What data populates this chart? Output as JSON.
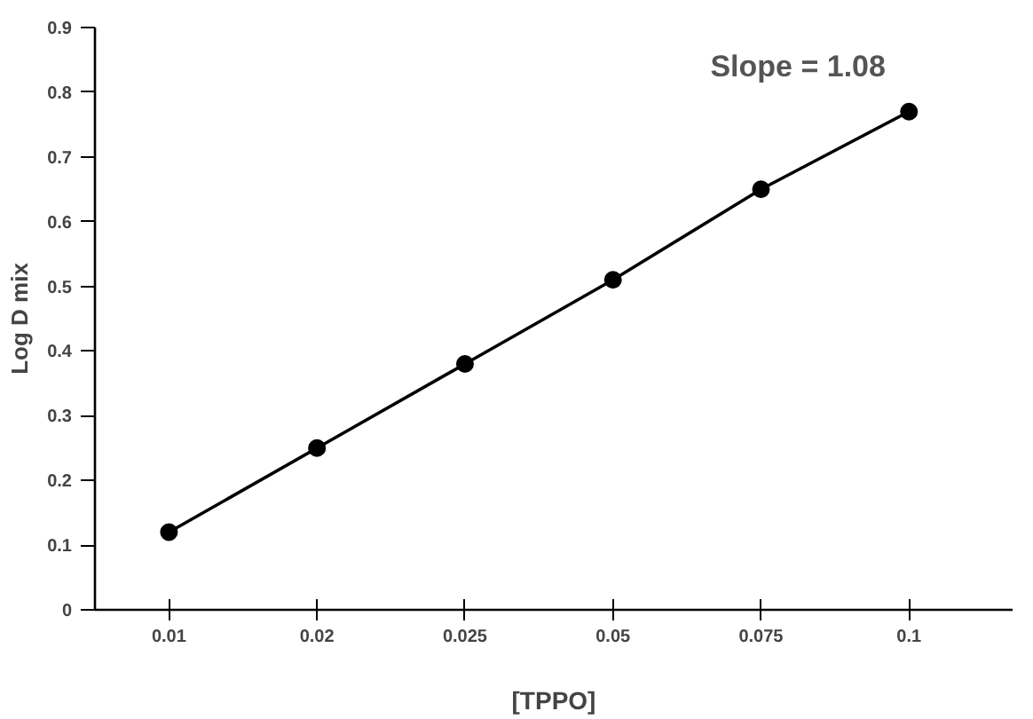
{
  "chart_data": {
    "type": "line",
    "xlabel": "[TPPO]",
    "ylabel": "Log D mix",
    "categories": [
      "0.01",
      "0.02",
      "0.025",
      "0.05",
      "0.075",
      "0.1"
    ],
    "series": [
      {
        "color": "#000000",
        "values": [
          0.12,
          0.25,
          0.38,
          0.51,
          0.65,
          0.77
        ]
      }
    ],
    "ylim": [
      0,
      0.9
    ],
    "yticks": [
      {
        "value": 0,
        "label": "0"
      },
      0.1,
      0.2,
      0.3,
      0.4,
      0.5,
      0.6,
      0.7,
      0.8,
      0.9
    ],
    "grid": false,
    "marker": "circle",
    "line_style": "solid",
    "annotations": [
      "Slope = 1.08"
    ]
  }
}
